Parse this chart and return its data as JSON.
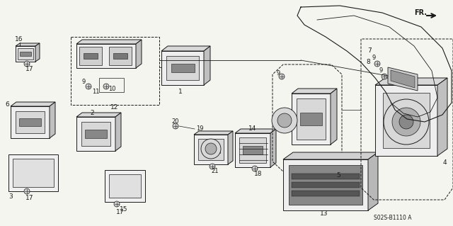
{
  "bg_color": "#f5f5f0",
  "lc": "#1a1a1a",
  "lw": 0.6,
  "part_code": "S02S-B1110 A",
  "figsize": [
    6.4,
    3.19
  ],
  "dpi": 100
}
